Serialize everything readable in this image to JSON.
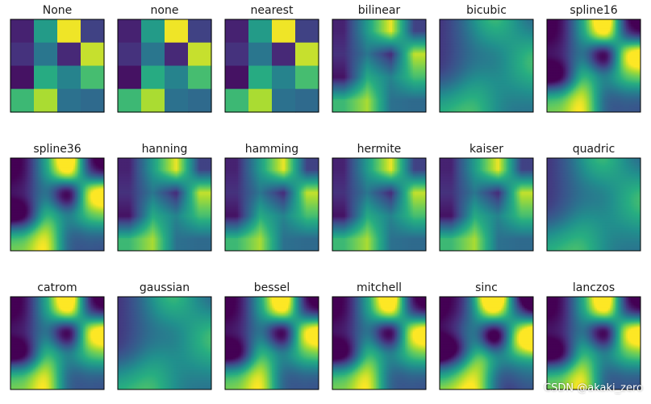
{
  "chart_data": {
    "type": "heatmap",
    "colormap": "viridis",
    "axes_ticks": "none",
    "grid_rows": 3,
    "grid_cols": 6,
    "matrix": [
      [
        0.1,
        0.55,
        0.98,
        0.2
      ],
      [
        0.15,
        0.4,
        0.12,
        0.92
      ],
      [
        0.05,
        0.62,
        0.45,
        0.7
      ],
      [
        0.68,
        0.88,
        0.38,
        0.35
      ]
    ],
    "panels": [
      {
        "title": "None",
        "method": "nearest"
      },
      {
        "title": "none",
        "method": "nearest"
      },
      {
        "title": "nearest",
        "method": "nearest"
      },
      {
        "title": "bilinear",
        "method": "bilinear"
      },
      {
        "title": "bicubic",
        "method": "bicubic"
      },
      {
        "title": "spline16",
        "method": "sharp"
      },
      {
        "title": "spline36",
        "method": "sharp"
      },
      {
        "title": "hanning",
        "method": "bilinear"
      },
      {
        "title": "hamming",
        "method": "bilinear"
      },
      {
        "title": "hermite",
        "method": "bilinear"
      },
      {
        "title": "kaiser",
        "method": "bilinear"
      },
      {
        "title": "quadric",
        "method": "bicubic"
      },
      {
        "title": "catrom",
        "method": "sharp"
      },
      {
        "title": "gaussian",
        "method": "bicubic"
      },
      {
        "title": "bessel",
        "method": "sharp"
      },
      {
        "title": "mitchell",
        "method": "sharp"
      },
      {
        "title": "sinc",
        "method": "sinc"
      },
      {
        "title": "lanczos",
        "method": "sharp"
      }
    ]
  },
  "watermark": "CSDN @akaki_zero"
}
